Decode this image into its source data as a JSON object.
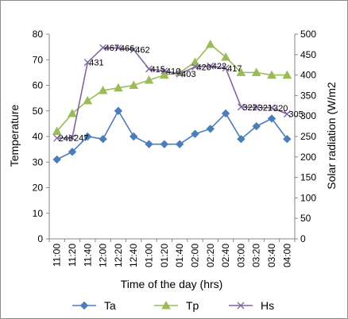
{
  "chart_data": {
    "type": "line",
    "xlabel": "Time of the day (hrs)",
    "ylabel_left": "Temperature",
    "ylabel_right": "Solar radiation (W/m2",
    "ylim_left": [
      0,
      80
    ],
    "ylim_right": [
      0,
      500
    ],
    "yticks_left": [
      "0",
      "10",
      "20",
      "30",
      "40",
      "50",
      "60",
      "70",
      "80"
    ],
    "yticks_right": [
      "0",
      "50",
      "100",
      "150",
      "200",
      "250",
      "300",
      "350",
      "400",
      "450",
      "500"
    ],
    "categories": [
      "11:00",
      "11:20",
      "11:40",
      "12:00",
      "12:20",
      "12:40",
      "01:00",
      "01:20",
      "01:40",
      "02:00",
      "02:20",
      "02:40",
      "03:00",
      "03:20",
      "03:40",
      "04:00"
    ],
    "grid": false,
    "legend_position": "bottom",
    "series": [
      {
        "name": "Ta",
        "axis": "left",
        "color": "#4a7ebb",
        "marker": "diamond",
        "values": [
          31,
          34,
          40,
          39,
          50,
          40,
          37,
          37,
          37,
          41,
          43,
          49,
          39,
          44,
          47,
          39
        ]
      },
      {
        "name": "Tp",
        "axis": "left",
        "color": "#9bbb59",
        "marker": "triangle",
        "values": [
          42,
          49,
          54,
          58,
          59,
          60,
          62,
          64,
          65,
          69,
          76,
          71,
          65,
          65,
          64,
          64
        ]
      },
      {
        "name": "Hs",
        "axis": "right",
        "color": "#8064a2",
        "marker": "x",
        "values": [
          246,
          247,
          431,
          467,
          466,
          462,
          415,
          410,
          403,
          420,
          422,
          417,
          322,
          321,
          320,
          305
        ],
        "labels": [
          "246",
          "247",
          "431",
          "467",
          "466",
          "462",
          "415",
          "410",
          "403",
          "420",
          "422",
          "417",
          "322",
          "321",
          "320",
          "305"
        ]
      }
    ]
  }
}
